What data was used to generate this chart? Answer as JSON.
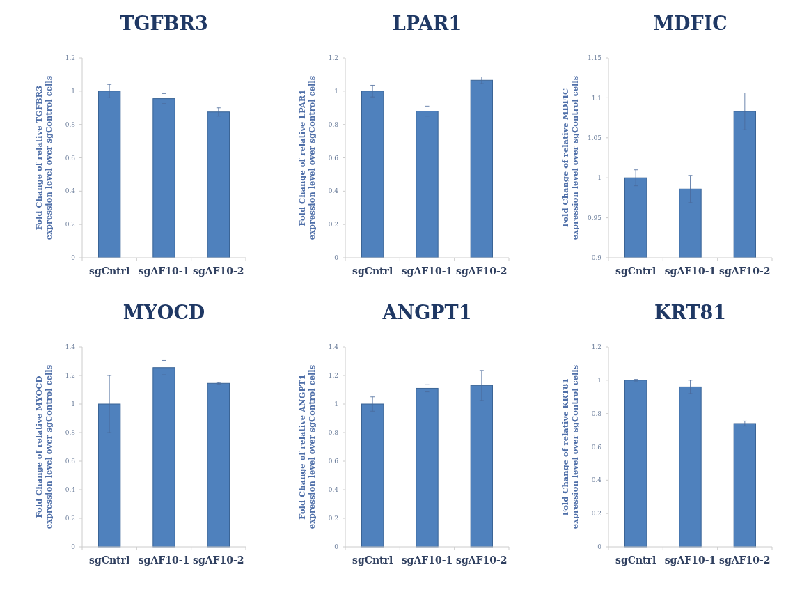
{
  "chart_data": [
    {
      "type": "bar",
      "title": "TGFBR3",
      "ylabel": "Fold Change of relative TGFBR3\nexpression level over sgControl cells",
      "categories": [
        "sgCntrl",
        "sgAF10-1",
        "sgAF10-2"
      ],
      "values": [
        1.0,
        0.955,
        0.875
      ],
      "errors": [
        0.04,
        0.03,
        0.025
      ],
      "color": "#4f81bd",
      "ylim": [
        0,
        1.2
      ],
      "yticks": [
        0,
        0.2,
        0.4,
        0.6,
        0.8,
        1,
        1.2
      ],
      "grid": false
    },
    {
      "type": "bar",
      "title": "LPAR1",
      "ylabel": "Fold Change of relative LPAR1\nexpression level over sgControl cells",
      "categories": [
        "sgCntrl",
        "sgAF10-1",
        "sgAF10-2"
      ],
      "values": [
        1.0,
        0.88,
        1.065
      ],
      "errors": [
        0.035,
        0.03,
        0.02
      ],
      "color": "#4f81bd",
      "ylim": [
        0,
        1.2
      ],
      "yticks": [
        0,
        0.2,
        0.4,
        0.6,
        0.8,
        1,
        1.2
      ],
      "grid": false
    },
    {
      "type": "bar",
      "title": "MDFIC",
      "ylabel": "Fold Change of relative MDFIC\nexpression level over sgControl cells",
      "categories": [
        "sgCntrl",
        "sgAF10-1",
        "sgAF10-2"
      ],
      "values": [
        1.0,
        0.986,
        1.083
      ],
      "errors": [
        0.01,
        0.017,
        0.023
      ],
      "color": "#4f81bd",
      "ylim": [
        0.9,
        1.15
      ],
      "yticks": [
        0.9,
        0.95,
        1,
        1.05,
        1.1,
        1.15
      ],
      "grid": false
    },
    {
      "type": "bar",
      "title": "MYOCD",
      "ylabel": "Fold Change of relative MYOCD\nexpression level over sgControl cells",
      "categories": [
        "sgCntrl",
        "sgAF10-1",
        "sgAF10-2"
      ],
      "values": [
        1.0,
        1.255,
        1.145
      ],
      "errors": [
        0.2,
        0.05,
        0.005
      ],
      "color": "#4f81bd",
      "ylim": [
        0,
        1.4
      ],
      "yticks": [
        0,
        0.2,
        0.4,
        0.6,
        0.8,
        1,
        1.2,
        1.4
      ],
      "grid": false
    },
    {
      "type": "bar",
      "title": "ANGPT1",
      "ylabel": "Fold Change of relative ANGPT1\nexpression level over sgControl cells",
      "categories": [
        "sgCntrl",
        "sgAF10-1",
        "sgAF10-2"
      ],
      "values": [
        1.0,
        1.11,
        1.13
      ],
      "errors": [
        0.05,
        0.025,
        0.105
      ],
      "color": "#4f81bd",
      "ylim": [
        0,
        1.4
      ],
      "yticks": [
        0,
        0.2,
        0.4,
        0.6,
        0.8,
        1,
        1.2,
        1.4
      ],
      "grid": false
    },
    {
      "type": "bar",
      "title": "KRT81",
      "ylabel": "Fold Change of relative KRT81\nexpression level over sgControl cells",
      "categories": [
        "sgCntrl",
        "sgAF10-1",
        "sgAF10-2"
      ],
      "values": [
        1.0,
        0.96,
        0.74
      ],
      "errors": [
        0.005,
        0.04,
        0.015
      ],
      "color": "#4f81bd",
      "ylim": [
        0,
        1.2
      ],
      "yticks": [
        0,
        0.2,
        0.4,
        0.6,
        0.8,
        1,
        1.2
      ],
      "grid": false
    }
  ]
}
